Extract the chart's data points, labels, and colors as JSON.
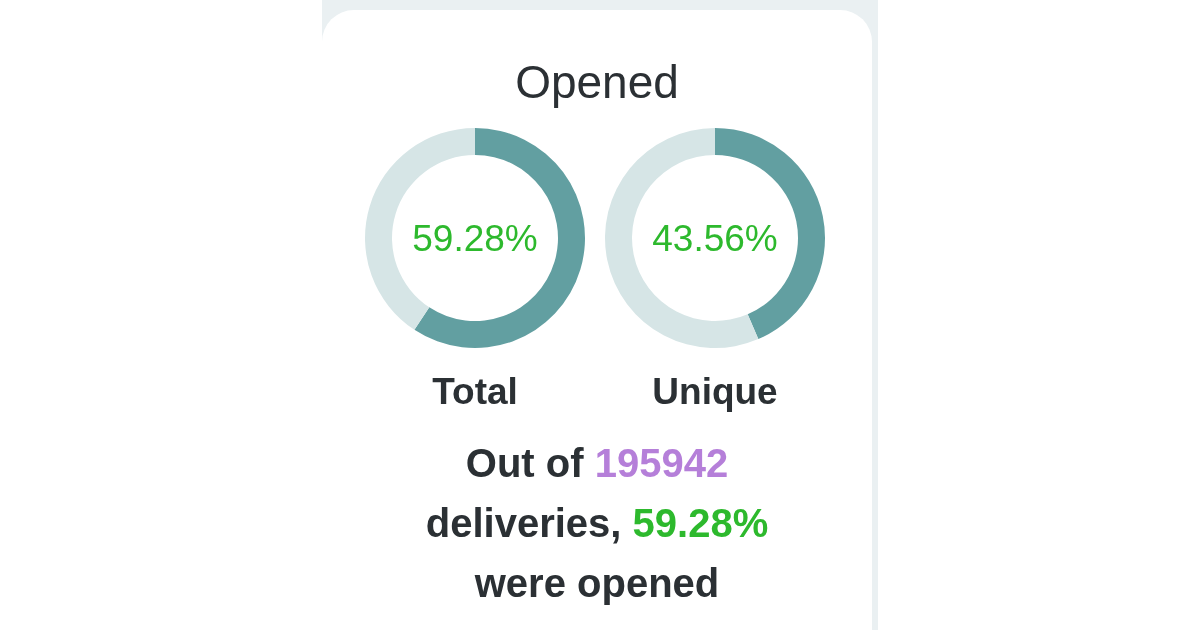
{
  "chart_data": [
    {
      "type": "other",
      "title": "Opened",
      "annotations": [
        "Out of 195942 deliveries, 59.28% were opened"
      ]
    },
    {
      "type": "donut",
      "title": "Total",
      "categories": [
        null,
        null
      ],
      "values": [
        59.28,
        40.72
      ],
      "colors": [
        "#629fa1",
        "#d6e5e6"
      ],
      "annotations": [
        "59.28%"
      ]
    },
    {
      "type": "donut",
      "title": "Unique",
      "categories": [
        null,
        null
      ],
      "values": [
        43.56,
        56.44
      ],
      "colors": [
        "#629fa1",
        "#d6e5e6"
      ],
      "annotations": [
        "43.56%"
      ]
    }
  ]
}
